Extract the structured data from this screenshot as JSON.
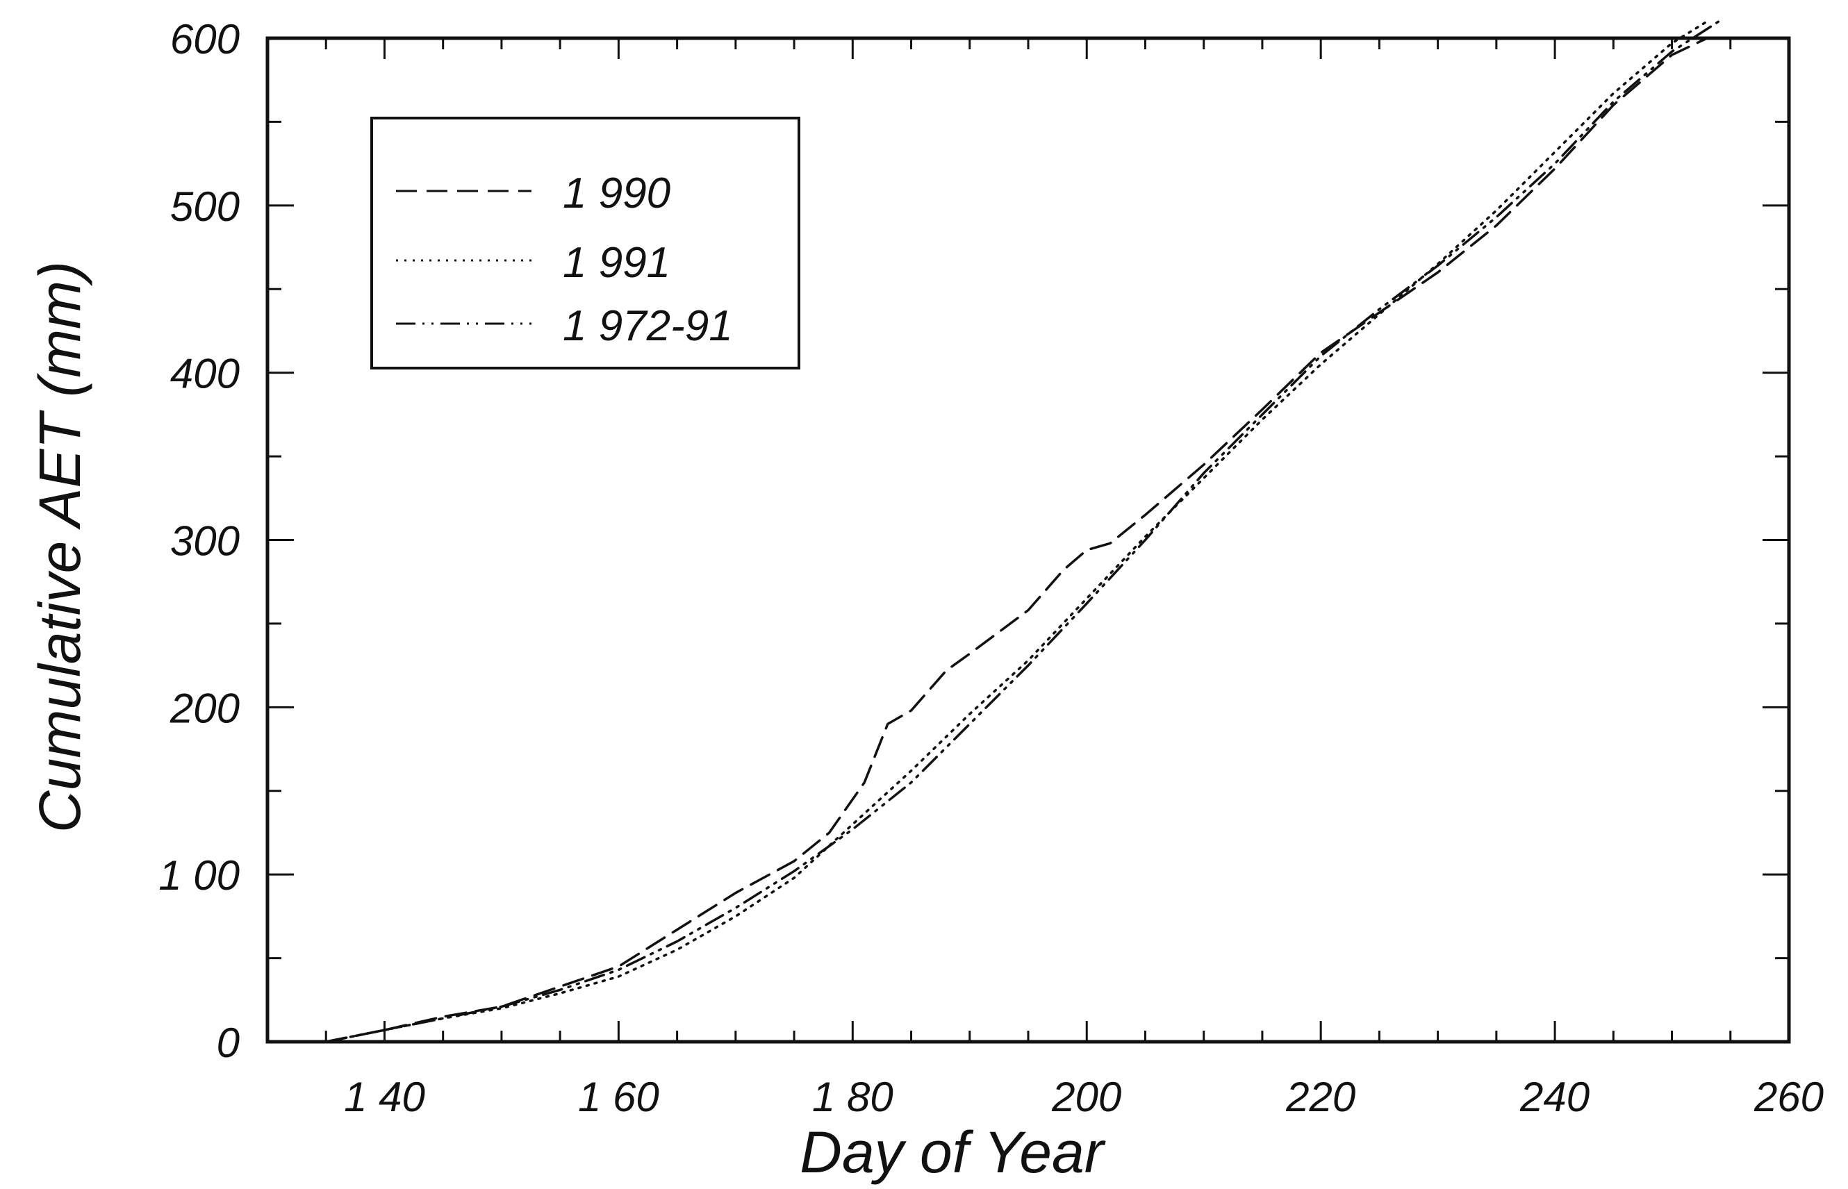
{
  "chart_data": {
    "type": "line",
    "title": "",
    "xlabel": "Day of Year",
    "ylabel": "Cumulative AET (mm)",
    "xlim": [
      130,
      260
    ],
    "ylim": [
      0,
      600
    ],
    "x_ticks": [
      140,
      160,
      180,
      200,
      220,
      240,
      260
    ],
    "x_tick_labels": [
      "1 40",
      "1 60",
      "1 80",
      "200",
      "220",
      "240",
      "260"
    ],
    "y_ticks": [
      0,
      100,
      200,
      300,
      400,
      500,
      600
    ],
    "y_tick_labels": [
      "0",
      "1 00",
      "200",
      "300",
      "400",
      "500",
      "600"
    ],
    "grid": false,
    "legend_position": "top-left",
    "series": [
      {
        "name": "1 990",
        "dash": "dashed",
        "color": "#111111",
        "x": [
          135,
          140,
          145,
          150,
          155,
          160,
          165,
          170,
          175,
          178,
          181,
          183,
          185,
          188,
          190,
          195,
          198,
          200,
          202,
          205,
          210,
          215,
          220,
          225,
          230,
          235,
          240,
          245,
          250,
          253
        ],
        "y": [
          0,
          7,
          15,
          21,
          33,
          45,
          67,
          89,
          108,
          125,
          155,
          190,
          198,
          222,
          232,
          258,
          282,
          294,
          298,
          315,
          345,
          378,
          412,
          436,
          460,
          488,
          522,
          560,
          590,
          600
        ]
      },
      {
        "name": "1 991",
        "dash": "dotted",
        "color": "#111111",
        "x": [
          135,
          140,
          145,
          150,
          155,
          160,
          165,
          170,
          175,
          180,
          185,
          190,
          195,
          200,
          205,
          210,
          215,
          220,
          225,
          230,
          235,
          240,
          245,
          250,
          253
        ],
        "y": [
          0,
          7,
          14,
          20,
          29,
          39,
          55,
          75,
          98,
          130,
          162,
          196,
          228,
          265,
          302,
          337,
          372,
          405,
          435,
          465,
          497,
          532,
          567,
          597,
          610
        ]
      },
      {
        "name": "1 972-91",
        "dash": "dash-dot-dot",
        "color": "#111111",
        "x": [
          135,
          140,
          145,
          150,
          155,
          160,
          165,
          170,
          175,
          180,
          185,
          190,
          195,
          200,
          205,
          210,
          215,
          220,
          225,
          230,
          235,
          240,
          245,
          250,
          254
        ],
        "y": [
          0,
          7,
          14,
          21,
          31,
          43,
          60,
          80,
          102,
          127,
          155,
          190,
          225,
          262,
          300,
          340,
          375,
          410,
          438,
          464,
          493,
          525,
          562,
          592,
          610
        ]
      }
    ]
  }
}
